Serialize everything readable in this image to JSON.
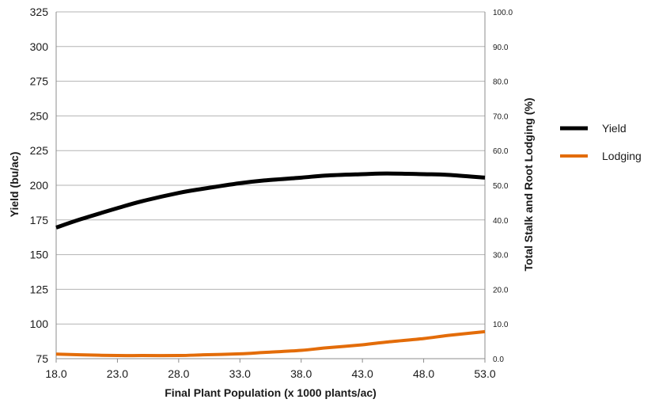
{
  "chart_data": {
    "type": "line",
    "xlabel": "Final Plant Population (x 1000 plants/ac)",
    "ylabel": "Yield (bu/ac)",
    "y2label": "Total Stalk and Root Lodging (%)",
    "xlim": [
      18.0,
      53.0
    ],
    "ylim": [
      75,
      325
    ],
    "y2lim": [
      0.0,
      100.0
    ],
    "x_ticks": [
      "18.0",
      "23.0",
      "28.0",
      "33.0",
      "38.0",
      "43.0",
      "48.0",
      "53.0"
    ],
    "y_ticks": [
      "75",
      "100",
      "125",
      "150",
      "175",
      "200",
      "225",
      "250",
      "275",
      "300",
      "325"
    ],
    "y2_ticks": [
      "0.0",
      "10.0",
      "20.0",
      "30.0",
      "40.0",
      "50.0",
      "60.0",
      "70.0",
      "80.0",
      "90.0",
      "100.0"
    ],
    "grid": "horizontal",
    "legend_position": "right",
    "series": [
      {
        "name": "Yield",
        "axis": "left",
        "color": "#000000",
        "x": [
          18,
          20,
          23,
          25,
          28,
          30,
          33,
          35,
          38,
          40,
          43,
          45,
          48,
          50,
          53
        ],
        "y": [
          169.5,
          175.5,
          183.5,
          188.5,
          194.5,
          197.5,
          201.5,
          203.5,
          205.5,
          207.0,
          208.0,
          208.5,
          208.0,
          207.5,
          205.5
        ]
      },
      {
        "name": "Lodging",
        "axis": "right",
        "color": "#E36C09",
        "x": [
          18,
          20,
          23,
          25,
          28,
          30,
          33,
          35,
          38,
          40,
          43,
          45,
          48,
          50,
          53
        ],
        "y": [
          1.3,
          1.1,
          0.9,
          0.9,
          0.9,
          1.1,
          1.4,
          1.8,
          2.4,
          3.1,
          4.0,
          4.8,
          5.8,
          6.7,
          7.8
        ]
      }
    ]
  }
}
